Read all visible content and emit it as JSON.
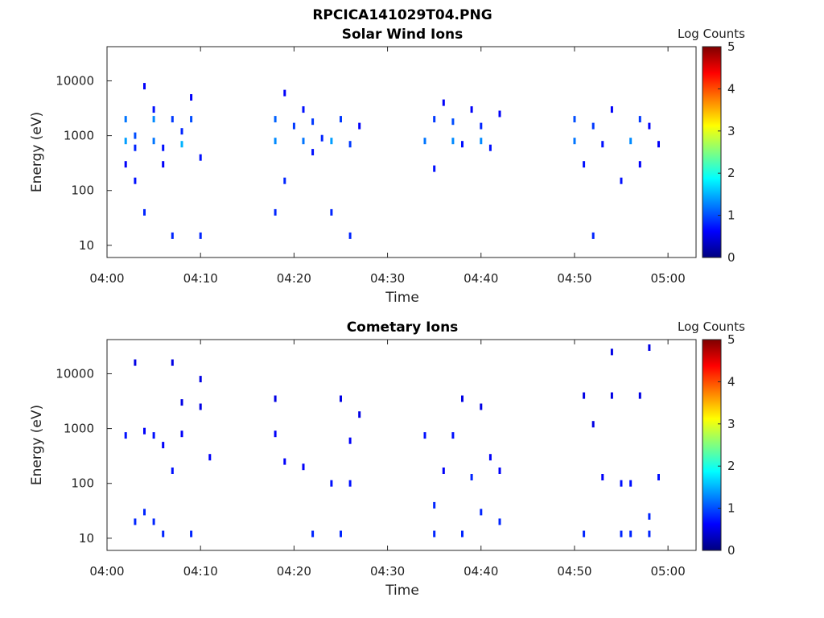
{
  "figure_title": "RPCICA141029T04.PNG",
  "colors": {
    "colormap": [
      "#00007f",
      "#0000ff",
      "#00ffff",
      "#ffff00",
      "#ff0000",
      "#7f0000"
    ],
    "frame": "#262626"
  },
  "chart_data": [
    {
      "type": "heatmap",
      "title": "Solar Wind Ions",
      "xlabel": "Time",
      "ylabel": "Energy (eV)",
      "yscale": "log",
      "ylim": [
        6,
        42000
      ],
      "xlim": [
        "04:00",
        "05:03"
      ],
      "xticks": [
        "04:00",
        "04:10",
        "04:20",
        "04:30",
        "04:40",
        "04:50",
        "05:00"
      ],
      "yticks": [
        "10",
        "100",
        "1000",
        "10000"
      ],
      "colorbar": {
        "label": "Log Counts",
        "ticks": [
          "0",
          "1",
          "2",
          "3",
          "4",
          "5"
        ],
        "range": [
          0,
          5
        ]
      },
      "points": [
        [
          "04:02",
          2000,
          1.2
        ],
        [
          "04:02",
          800,
          1.4
        ],
        [
          "04:02",
          300,
          0.6
        ],
        [
          "04:03",
          1000,
          1.0
        ],
        [
          "04:03",
          600,
          0.8
        ],
        [
          "04:03",
          150,
          0.7
        ],
        [
          "04:04",
          8000,
          0.6
        ],
        [
          "04:04",
          40,
          0.8
        ],
        [
          "04:05",
          3000,
          0.7
        ],
        [
          "04:05",
          800,
          1.2
        ],
        [
          "04:05",
          2000,
          1.3
        ],
        [
          "04:06",
          600,
          0.7
        ],
        [
          "04:06",
          300,
          0.6
        ],
        [
          "04:07",
          15,
          0.8
        ],
        [
          "04:07",
          2000,
          0.9
        ],
        [
          "04:08",
          1200,
          0.8
        ],
        [
          "04:08",
          700,
          1.5
        ],
        [
          "04:09",
          2000,
          1.0
        ],
        [
          "04:09",
          5000,
          0.6
        ],
        [
          "04:10",
          15,
          0.8
        ],
        [
          "04:10",
          400,
          0.7
        ],
        [
          "04:18",
          40,
          0.8
        ],
        [
          "04:18",
          800,
          1.3
        ],
        [
          "04:18",
          2000,
          1.1
        ],
        [
          "04:19",
          150,
          0.8
        ],
        [
          "04:19",
          6000,
          0.6
        ],
        [
          "04:20",
          1500,
          0.9
        ],
        [
          "04:21",
          800,
          1.2
        ],
        [
          "04:21",
          3000,
          0.7
        ],
        [
          "04:22",
          500,
          0.7
        ],
        [
          "04:22",
          1800,
          0.9
        ],
        [
          "04:23",
          900,
          0.8
        ],
        [
          "04:24",
          40,
          0.8
        ],
        [
          "04:24",
          800,
          1.4
        ],
        [
          "04:25",
          2000,
          0.9
        ],
        [
          "04:26",
          15,
          0.8
        ],
        [
          "04:26",
          700,
          0.9
        ],
        [
          "04:27",
          1500,
          0.6
        ],
        [
          "04:34",
          800,
          1.2
        ],
        [
          "04:35",
          2000,
          0.9
        ],
        [
          "04:35",
          250,
          0.7
        ],
        [
          "04:36",
          4000,
          0.6
        ],
        [
          "04:37",
          800,
          1.3
        ],
        [
          "04:37",
          1800,
          1.0
        ],
        [
          "04:38",
          700,
          0.7
        ],
        [
          "04:39",
          3000,
          0.6
        ],
        [
          "04:40",
          800,
          1.3
        ],
        [
          "04:40",
          1500,
          0.8
        ],
        [
          "04:41",
          600,
          0.7
        ],
        [
          "04:42",
          2500,
          0.6
        ],
        [
          "04:50",
          800,
          1.2
        ],
        [
          "04:50",
          2000,
          1.0
        ],
        [
          "04:51",
          300,
          0.7
        ],
        [
          "04:52",
          15,
          0.8
        ],
        [
          "04:52",
          1500,
          0.9
        ],
        [
          "04:53",
          700,
          0.7
        ],
        [
          "04:54",
          3000,
          0.6
        ],
        [
          "04:55",
          150,
          0.7
        ],
        [
          "04:56",
          800,
          1.3
        ],
        [
          "04:57",
          2000,
          0.9
        ],
        [
          "04:57",
          300,
          0.6
        ],
        [
          "04:58",
          1500,
          0.6
        ],
        [
          "04:59",
          700,
          0.6
        ]
      ]
    },
    {
      "type": "heatmap",
      "title": "Cometary Ions",
      "xlabel": "Time",
      "ylabel": "Energy (eV)",
      "yscale": "log",
      "ylim": [
        6,
        42000
      ],
      "xlim": [
        "04:00",
        "05:03"
      ],
      "xticks": [
        "04:00",
        "04:10",
        "04:20",
        "04:30",
        "04:40",
        "04:50",
        "05:00"
      ],
      "yticks": [
        "10",
        "100",
        "1000",
        "10000"
      ],
      "colorbar": {
        "label": "Log Counts",
        "ticks": [
          "0",
          "1",
          "2",
          "3",
          "4",
          "5"
        ],
        "range": [
          0,
          5
        ]
      },
      "points": [
        [
          "04:02",
          750,
          0.7
        ],
        [
          "04:03",
          20,
          0.8
        ],
        [
          "04:03",
          16000,
          0.5
        ],
        [
          "04:04",
          900,
          0.6
        ],
        [
          "04:04",
          30,
          0.8
        ],
        [
          "04:05",
          750,
          0.7
        ],
        [
          "04:05",
          20,
          0.8
        ],
        [
          "04:06",
          500,
          0.6
        ],
        [
          "04:06",
          12,
          0.8
        ],
        [
          "04:07",
          170,
          0.7
        ],
        [
          "04:07",
          16000,
          0.5
        ],
        [
          "04:08",
          3000,
          0.5
        ],
        [
          "04:08",
          800,
          0.6
        ],
        [
          "04:09",
          12,
          0.8
        ],
        [
          "04:10",
          2500,
          0.5
        ],
        [
          "04:10",
          8000,
          0.5
        ],
        [
          "04:11",
          300,
          0.6
        ],
        [
          "04:18",
          800,
          0.6
        ],
        [
          "04:18",
          3500,
          0.5
        ],
        [
          "04:19",
          250,
          0.6
        ],
        [
          "04:21",
          200,
          0.6
        ],
        [
          "04:22",
          12,
          0.8
        ],
        [
          "04:24",
          100,
          0.7
        ],
        [
          "04:25",
          3500,
          0.5
        ],
        [
          "04:25",
          12,
          0.8
        ],
        [
          "04:26",
          100,
          0.7
        ],
        [
          "04:26",
          600,
          0.6
        ],
        [
          "04:27",
          1800,
          0.5
        ],
        [
          "04:34",
          750,
          0.7
        ],
        [
          "04:35",
          40,
          0.8
        ],
        [
          "04:35",
          12,
          0.8
        ],
        [
          "04:36",
          170,
          0.6
        ],
        [
          "04:37",
          750,
          0.7
        ],
        [
          "04:38",
          12,
          0.8
        ],
        [
          "04:38",
          3500,
          0.5
        ],
        [
          "04:39",
          130,
          0.8
        ],
        [
          "04:40",
          30,
          0.8
        ],
        [
          "04:40",
          2500,
          0.5
        ],
        [
          "04:41",
          300,
          0.6
        ],
        [
          "04:42",
          20,
          0.8
        ],
        [
          "04:42",
          170,
          0.6
        ],
        [
          "04:51",
          4000,
          0.5
        ],
        [
          "04:51",
          12,
          0.8
        ],
        [
          "04:52",
          1200,
          0.5
        ],
        [
          "04:53",
          130,
          0.6
        ],
        [
          "04:54",
          25000,
          0.5
        ],
        [
          "04:54",
          4000,
          0.5
        ],
        [
          "04:55",
          100,
          0.7
        ],
        [
          "04:55",
          12,
          0.8
        ],
        [
          "04:56",
          100,
          0.7
        ],
        [
          "04:56",
          12,
          0.8
        ],
        [
          "04:57",
          4000,
          0.5
        ],
        [
          "04:58",
          12,
          0.8
        ],
        [
          "04:58",
          30000,
          0.5
        ],
        [
          "04:58",
          25,
          0.8
        ],
        [
          "04:59",
          130,
          0.7
        ]
      ]
    }
  ]
}
